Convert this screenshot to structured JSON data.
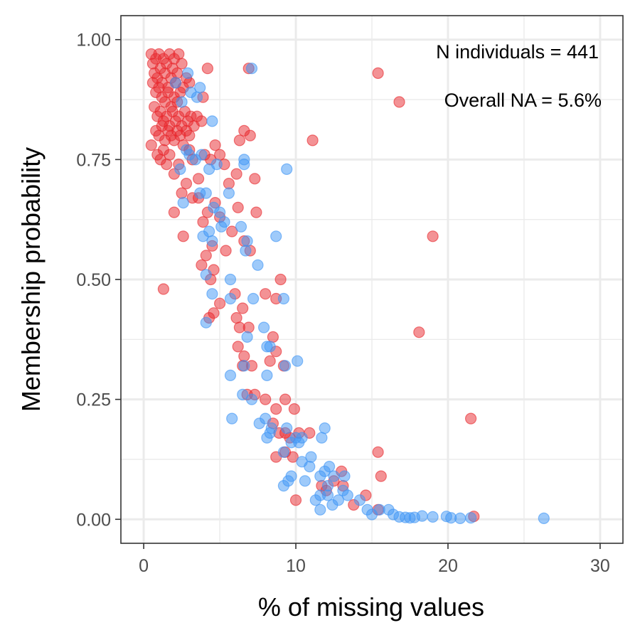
{
  "chart_data": {
    "type": "scatter",
    "title": "",
    "xlabel": "% of missing values",
    "ylabel": "Membership probability",
    "xlim": [
      -1.5,
      31.5
    ],
    "ylim": [
      -0.05,
      1.05
    ],
    "x_ticks": [
      0,
      10,
      20,
      30
    ],
    "x_tick_labels": [
      "0",
      "10",
      "20",
      "30"
    ],
    "y_ticks": [
      0.0,
      0.25,
      0.5,
      0.75,
      1.0
    ],
    "y_tick_labels": [
      "0.00",
      "0.25",
      "0.50",
      "0.75",
      "1.00"
    ],
    "grid": true,
    "legend": "none",
    "annotations": [
      "N individuals = 441",
      "Overall NA = 5.6%"
    ],
    "colors": {
      "red": "#e8262b",
      "blue": "#3e95f5",
      "grid": "#ebebeb",
      "panel_border": "#333333"
    },
    "series": [
      {
        "color": "#e8262b",
        "points": [
          [
            0.5,
            0.97
          ],
          [
            0.6,
            0.95
          ],
          [
            0.7,
            0.93
          ],
          [
            0.8,
            0.96
          ],
          [
            0.9,
            0.92
          ],
          [
            1.0,
            0.97
          ],
          [
            1.1,
            0.94
          ],
          [
            1.2,
            0.91
          ],
          [
            1.3,
            0.96
          ],
          [
            1.4,
            0.93
          ],
          [
            1.5,
            0.95
          ],
          [
            1.6,
            0.9
          ],
          [
            1.7,
            0.97
          ],
          [
            1.8,
            0.92
          ],
          [
            1.9,
            0.94
          ],
          [
            2.0,
            0.96
          ],
          [
            2.1,
            0.91
          ],
          [
            2.2,
            0.93
          ],
          [
            2.3,
            0.97
          ],
          [
            2.5,
            0.95
          ],
          [
            0.6,
            0.91
          ],
          [
            0.8,
            0.89
          ],
          [
            1.0,
            0.9
          ],
          [
            1.2,
            0.88
          ],
          [
            1.4,
            0.87
          ],
          [
            1.6,
            0.89
          ],
          [
            1.8,
            0.86
          ],
          [
            2.0,
            0.88
          ],
          [
            2.2,
            0.87
          ],
          [
            2.4,
            0.89
          ],
          [
            2.6,
            0.9
          ],
          [
            2.8,
            0.92
          ],
          [
            3.0,
            0.91
          ],
          [
            0.7,
            0.86
          ],
          [
            0.9,
            0.84
          ],
          [
            1.1,
            0.85
          ],
          [
            1.3,
            0.83
          ],
          [
            1.5,
            0.84
          ],
          [
            1.7,
            0.82
          ],
          [
            1.9,
            0.85
          ],
          [
            2.1,
            0.83
          ],
          [
            2.3,
            0.84
          ],
          [
            2.5,
            0.82
          ],
          [
            2.7,
            0.85
          ],
          [
            2.9,
            0.83
          ],
          [
            3.1,
            0.84
          ],
          [
            3.3,
            0.82
          ],
          [
            0.8,
            0.81
          ],
          [
            1.0,
            0.8
          ],
          [
            1.2,
            0.82
          ],
          [
            1.4,
            0.79
          ],
          [
            1.6,
            0.81
          ],
          [
            1.8,
            0.8
          ],
          [
            2.0,
            0.79
          ],
          [
            2.2,
            0.81
          ],
          [
            2.4,
            0.8
          ],
          [
            2.6,
            0.78
          ],
          [
            2.8,
            0.81
          ],
          [
            3.0,
            0.8
          ],
          [
            3.5,
            0.84
          ],
          [
            3.8,
            0.83
          ],
          [
            4.2,
            0.94
          ],
          [
            3.9,
            0.88
          ],
          [
            0.9,
            0.76
          ],
          [
            1.1,
            0.75
          ],
          [
            1.3,
            0.77
          ],
          [
            1.5,
            0.74
          ],
          [
            1.7,
            0.76
          ],
          [
            2.0,
            0.72
          ],
          [
            2.3,
            0.74
          ],
          [
            2.5,
            0.68
          ],
          [
            2.8,
            0.7
          ],
          [
            3.0,
            0.77
          ],
          [
            3.2,
            0.75
          ],
          [
            3.6,
            0.71
          ],
          [
            4.0,
            0.76
          ],
          [
            4.4,
            0.75
          ],
          [
            4.7,
            0.78
          ],
          [
            5.0,
            0.76
          ],
          [
            5.3,
            0.74
          ],
          [
            5.6,
            0.7
          ],
          [
            6.1,
            0.72
          ],
          [
            6.3,
            0.79
          ],
          [
            6.6,
            0.81
          ],
          [
            7.0,
            0.8
          ],
          [
            7.3,
            0.71
          ],
          [
            6.9,
            0.94
          ],
          [
            2.0,
            0.64
          ],
          [
            2.6,
            0.59
          ],
          [
            3.2,
            0.67
          ],
          [
            3.6,
            0.67
          ],
          [
            3.9,
            0.62
          ],
          [
            4.2,
            0.64
          ],
          [
            4.5,
            0.57
          ],
          [
            4.7,
            0.66
          ],
          [
            5.0,
            0.63
          ],
          [
            5.4,
            0.56
          ],
          [
            5.8,
            0.6
          ],
          [
            6.2,
            0.65
          ],
          [
            6.6,
            0.58
          ],
          [
            7.0,
            0.56
          ],
          [
            7.4,
            0.64
          ],
          [
            3.8,
            0.53
          ],
          [
            4.1,
            0.55
          ],
          [
            4.4,
            0.5
          ],
          [
            4.6,
            0.52
          ],
          [
            4.3,
            0.42
          ],
          [
            4.6,
            0.43
          ],
          [
            5.0,
            0.45
          ],
          [
            6.0,
            0.47
          ],
          [
            6.5,
            0.44
          ],
          [
            6.9,
            0.4
          ],
          [
            6.1,
            0.42
          ],
          [
            8.0,
            0.47
          ],
          [
            8.7,
            0.46
          ],
          [
            9.0,
            0.5
          ],
          [
            1.3,
            0.48
          ],
          [
            6.2,
            0.36
          ],
          [
            6.6,
            0.34
          ],
          [
            6.5,
            0.32
          ],
          [
            7.1,
            0.32
          ],
          [
            6.3,
            0.4
          ],
          [
            8.3,
            0.33
          ],
          [
            8.5,
            0.38
          ],
          [
            8.7,
            0.35
          ],
          [
            9.2,
            0.32
          ],
          [
            6.8,
            0.26
          ],
          [
            7.3,
            0.26
          ],
          [
            8.0,
            0.25
          ],
          [
            8.7,
            0.23
          ],
          [
            9.3,
            0.25
          ],
          [
            9.9,
            0.23
          ],
          [
            8.5,
            0.2
          ],
          [
            8.9,
            0.18
          ],
          [
            9.3,
            0.18
          ],
          [
            9.6,
            0.17
          ],
          [
            10.2,
            0.18
          ],
          [
            10.9,
            0.18
          ],
          [
            8.7,
            0.13
          ],
          [
            9.3,
            0.14
          ],
          [
            9.8,
            0.13
          ],
          [
            11.7,
            0.07
          ],
          [
            12.0,
            0.06
          ],
          [
            12.5,
            0.08
          ],
          [
            13.0,
            0.1
          ],
          [
            13.1,
            0.07
          ],
          [
            10.0,
            0.04
          ],
          [
            13.8,
            0.03
          ],
          [
            14.6,
            0.05
          ],
          [
            15.4,
            0.14
          ],
          [
            15.6,
            0.09
          ],
          [
            15.4,
            0.02
          ],
          [
            21.7,
            0.006
          ],
          [
            21.5,
            0.21
          ],
          [
            18.1,
            0.39
          ],
          [
            19.0,
            0.59
          ],
          [
            11.1,
            0.79
          ],
          [
            15.4,
            0.93
          ],
          [
            16.8,
            0.87
          ],
          [
            0.5,
            0.78
          ]
        ]
      },
      {
        "color": "#3e95f5",
        "points": [
          [
            7.1,
            0.94
          ],
          [
            2.9,
            0.93
          ],
          [
            3.1,
            0.89
          ],
          [
            3.5,
            0.88
          ],
          [
            3.7,
            0.9
          ],
          [
            2.5,
            0.87
          ],
          [
            4.5,
            0.83
          ],
          [
            2.1,
            0.91
          ],
          [
            2.8,
            0.77
          ],
          [
            3.0,
            0.76
          ],
          [
            3.4,
            0.75
          ],
          [
            3.8,
            0.76
          ],
          [
            4.3,
            0.73
          ],
          [
            4.8,
            0.74
          ],
          [
            6.6,
            0.74
          ],
          [
            6.6,
            0.75
          ],
          [
            9.4,
            0.73
          ],
          [
            2.4,
            0.73
          ],
          [
            2.6,
            0.66
          ],
          [
            3.7,
            0.68
          ],
          [
            4.1,
            0.68
          ],
          [
            5.6,
            0.68
          ],
          [
            4.6,
            0.65
          ],
          [
            5.0,
            0.64
          ],
          [
            5.1,
            0.61
          ],
          [
            5.3,
            0.62
          ],
          [
            6.4,
            0.61
          ],
          [
            3.9,
            0.59
          ],
          [
            4.3,
            0.6
          ],
          [
            4.5,
            0.58
          ],
          [
            6.8,
            0.58
          ],
          [
            6.7,
            0.56
          ],
          [
            7.5,
            0.53
          ],
          [
            8.7,
            0.59
          ],
          [
            4.1,
            0.51
          ],
          [
            4.5,
            0.47
          ],
          [
            5.7,
            0.5
          ],
          [
            5.7,
            0.46
          ],
          [
            7.2,
            0.46
          ],
          [
            9.2,
            0.46
          ],
          [
            4.1,
            0.41
          ],
          [
            6.8,
            0.38
          ],
          [
            7.9,
            0.4
          ],
          [
            8.3,
            0.36
          ],
          [
            8.1,
            0.36
          ],
          [
            6.6,
            0.32
          ],
          [
            5.7,
            0.3
          ],
          [
            8.1,
            0.3
          ],
          [
            9.3,
            0.32
          ],
          [
            10.1,
            0.33
          ],
          [
            6.5,
            0.26
          ],
          [
            7.1,
            0.25
          ],
          [
            7.6,
            0.2
          ],
          [
            8.0,
            0.21
          ],
          [
            8.3,
            0.18
          ],
          [
            8.1,
            0.17
          ],
          [
            9.4,
            0.19
          ],
          [
            9.7,
            0.16
          ],
          [
            10.0,
            0.17
          ],
          [
            10.4,
            0.17
          ],
          [
            9.2,
            0.14
          ],
          [
            10.4,
            0.12
          ],
          [
            11.0,
            0.13
          ],
          [
            10.9,
            0.11
          ],
          [
            11.6,
            0.09
          ],
          [
            11.9,
            0.1
          ],
          [
            12.2,
            0.11
          ],
          [
            12.5,
            0.09
          ],
          [
            12.1,
            0.07
          ],
          [
            13.2,
            0.09
          ],
          [
            9.7,
            0.09
          ],
          [
            10.6,
            0.08
          ],
          [
            11.6,
            0.05
          ],
          [
            11.3,
            0.04
          ],
          [
            12.1,
            0.05
          ],
          [
            12.8,
            0.04
          ],
          [
            13.1,
            0.06
          ],
          [
            13.4,
            0.05
          ],
          [
            14.2,
            0.04
          ],
          [
            14.7,
            0.02
          ],
          [
            15.0,
            0.01
          ],
          [
            15.5,
            0.02
          ],
          [
            16.1,
            0.02
          ],
          [
            16.4,
            0.01
          ],
          [
            16.8,
            0.005
          ],
          [
            17.2,
            0.004
          ],
          [
            17.5,
            0.003
          ],
          [
            17.8,
            0.004
          ],
          [
            18.3,
            0.007
          ],
          [
            19.0,
            0.005
          ],
          [
            19.9,
            0.006
          ],
          [
            20.2,
            0.003
          ],
          [
            20.8,
            0.002
          ],
          [
            21.5,
            0.003
          ],
          [
            26.3,
            0.002
          ],
          [
            11.6,
            0.02
          ],
          [
            12.4,
            0.03
          ],
          [
            9.2,
            0.07
          ],
          [
            9.5,
            0.08
          ],
          [
            11.9,
            0.19
          ],
          [
            11.7,
            0.17
          ],
          [
            10.2,
            0.16
          ],
          [
            5.8,
            0.21
          ],
          [
            8.4,
            0.19
          ]
        ]
      }
    ]
  }
}
